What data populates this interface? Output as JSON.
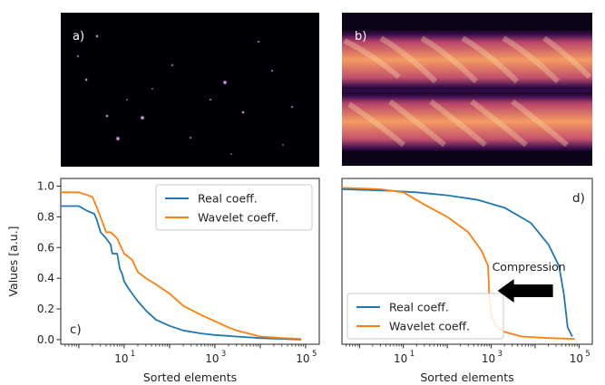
{
  "panels": {
    "a": {
      "label": "a)"
    },
    "b": {
      "label": "b)"
    }
  },
  "chart_data": [
    {
      "type": "line",
      "panel_label": "c)",
      "xlabel": "Sorted elements",
      "ylabel": "Values [a.u.]",
      "xscale": "log",
      "xlim": [
        0.4,
        200000
      ],
      "ylim": [
        -0.03,
        1.05
      ],
      "xticks": [
        10,
        1000,
        100000
      ],
      "xtick_labels": [
        [
          "10",
          "1"
        ],
        [
          "10",
          "3"
        ],
        [
          "10",
          "5"
        ]
      ],
      "yticks": [
        0.0,
        0.2,
        0.4,
        0.6,
        0.8,
        1.0
      ],
      "ytick_labels": [
        "0.0",
        "0.2",
        "0.4",
        "0.6",
        "0.8",
        "1.0"
      ],
      "legend_position": "top-right",
      "series": [
        {
          "name": "Real coeff.",
          "color": "#1f77b4",
          "x": [
            0.4,
            1.0,
            1.5,
            2.2,
            2.5,
            3.0,
            4.0,
            5.0,
            5.5,
            7.0,
            8.0,
            9.0,
            10,
            12,
            15,
            20,
            30,
            50,
            100,
            200,
            500,
            1000,
            3000,
            10000,
            30000,
            80000
          ],
          "y": [
            0.87,
            0.87,
            0.84,
            0.82,
            0.78,
            0.7,
            0.66,
            0.62,
            0.56,
            0.56,
            0.46,
            0.43,
            0.38,
            0.34,
            0.3,
            0.25,
            0.19,
            0.13,
            0.09,
            0.06,
            0.04,
            0.03,
            0.02,
            0.01,
            0.005,
            0.0
          ]
        },
        {
          "name": "Wavelet coeff.",
          "color": "#ff7f0e",
          "x": [
            0.4,
            1.0,
            2.0,
            3.0,
            4.0,
            5.0,
            7.0,
            8.0,
            10,
            15,
            20,
            30,
            50,
            100,
            200,
            500,
            1000,
            2000,
            3000,
            10000,
            30000,
            80000
          ],
          "y": [
            0.96,
            0.96,
            0.93,
            0.8,
            0.7,
            0.7,
            0.66,
            0.62,
            0.56,
            0.52,
            0.44,
            0.4,
            0.36,
            0.3,
            0.22,
            0.16,
            0.12,
            0.08,
            0.06,
            0.02,
            0.01,
            0.005
          ]
        }
      ]
    },
    {
      "type": "line",
      "panel_label": "d)",
      "xlabel": "Sorted elements",
      "ylabel": "",
      "xscale": "log",
      "xlim": [
        0.4,
        200000
      ],
      "ylim": [
        -0.03,
        1.05
      ],
      "xticks": [
        10,
        1000,
        100000
      ],
      "xtick_labels": [
        [
          "10",
          "1"
        ],
        [
          "10",
          "3"
        ],
        [
          "10",
          "5"
        ]
      ],
      "legend_position": "bottom-left",
      "annotation": {
        "text": "Compression",
        "arrow": "left"
      },
      "series": [
        {
          "name": "Real coeff.",
          "color": "#1f77b4",
          "x": [
            0.4,
            5,
            20,
            100,
            500,
            2000,
            8000,
            20000,
            35000,
            45000,
            55000,
            70000
          ],
          "y": [
            0.98,
            0.97,
            0.96,
            0.94,
            0.91,
            0.86,
            0.76,
            0.62,
            0.48,
            0.3,
            0.08,
            0.02
          ]
        },
        {
          "name": "Wavelet coeff.",
          "color": "#ff7f0e",
          "x": [
            0.4,
            3,
            10,
            30,
            100,
            300,
            600,
            850,
            900,
            1000,
            1300,
            2000,
            5000,
            20000,
            80000
          ],
          "y": [
            0.99,
            0.98,
            0.96,
            0.88,
            0.8,
            0.7,
            0.58,
            0.48,
            0.3,
            0.15,
            0.09,
            0.05,
            0.02,
            0.01,
            0.005
          ]
        }
      ]
    }
  ]
}
